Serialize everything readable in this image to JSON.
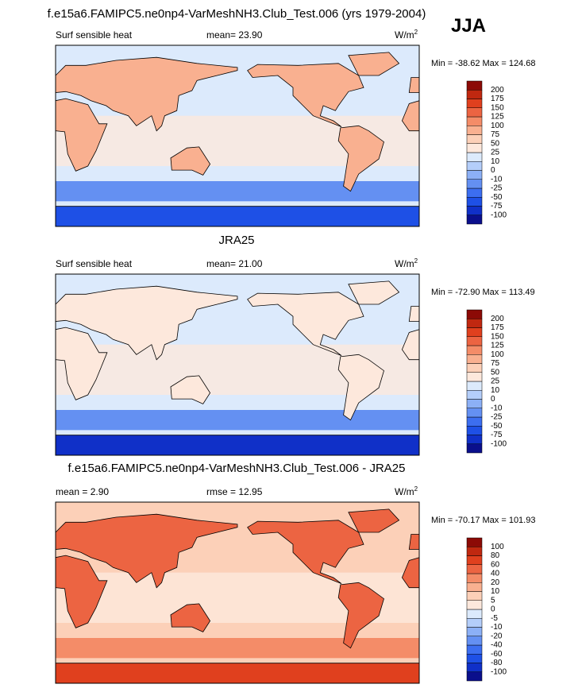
{
  "header": {
    "title": "f.e15a6.FAMIPC5.ne0np4-VarMeshNH3.Club_Test.006 (yrs 1979-2004)",
    "season": "JJA"
  },
  "colormap": [
    "#0a0f8c",
    "#1030c8",
    "#1e50e6",
    "#3c6ef0",
    "#6490f2",
    "#8cb0f6",
    "#b4cefa",
    "#dceafc",
    "#fde8dc",
    "#fcd0b8",
    "#f9b090",
    "#f48c68",
    "#ec6442",
    "#e0401e",
    "#c02810",
    "#8c0a06"
  ],
  "panels": [
    {
      "left": "Surf sensible heat",
      "center": "mean=  23.90",
      "units": "W/m",
      "units_sup": "2",
      "minmax": "Min = -38.62 Max = 124.68",
      "levels": [
        200,
        175,
        150,
        125,
        100,
        75,
        50,
        25,
        10,
        0,
        -10,
        -25,
        -50,
        -75,
        -100
      ]
    },
    {
      "title": "JRA25",
      "left": "Surf sensible heat",
      "center": "mean=  21.00",
      "units": "W/m",
      "units_sup": "2",
      "minmax": "Min = -72.90 Max = 113.49",
      "levels": [
        200,
        175,
        150,
        125,
        100,
        75,
        50,
        25,
        10,
        0,
        -10,
        -25,
        -50,
        -75,
        -100
      ]
    },
    {
      "title": "f.e15a6.FAMIPC5.ne0np4-VarMeshNH3.Club_Test.006 - JRA25",
      "left": "mean =   2.90",
      "center": "rmse =  12.95",
      "units": "W/m",
      "units_sup": "2",
      "minmax": "Min = -70.17 Max = 101.93",
      "levels": [
        100,
        80,
        60,
        40,
        20,
        10,
        5,
        0,
        -5,
        -10,
        -20,
        -40,
        -60,
        -80,
        -100
      ]
    }
  ]
}
